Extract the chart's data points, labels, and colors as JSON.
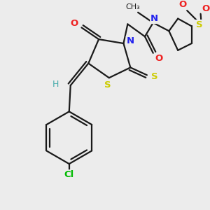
{
  "bg_color": "#ececec",
  "bond_color": "#1a1a1a",
  "bond_width": 1.6,
  "atoms": {
    "Cl": {
      "color": "#00bb00",
      "fontsize": 9.5,
      "fontweight": "bold"
    },
    "S": {
      "color": "#cccc00",
      "fontsize": 9.5,
      "fontweight": "bold"
    },
    "N": {
      "color": "#2222ee",
      "fontsize": 9.5,
      "fontweight": "bold"
    },
    "O": {
      "color": "#ee2222",
      "fontsize": 9.5,
      "fontweight": "bold"
    },
    "H": {
      "color": "#44aaaa",
      "fontsize": 9.0,
      "fontweight": "normal"
    },
    "me": {
      "color": "#1a1a1a",
      "fontsize": 8.0,
      "fontweight": "normal"
    }
  }
}
